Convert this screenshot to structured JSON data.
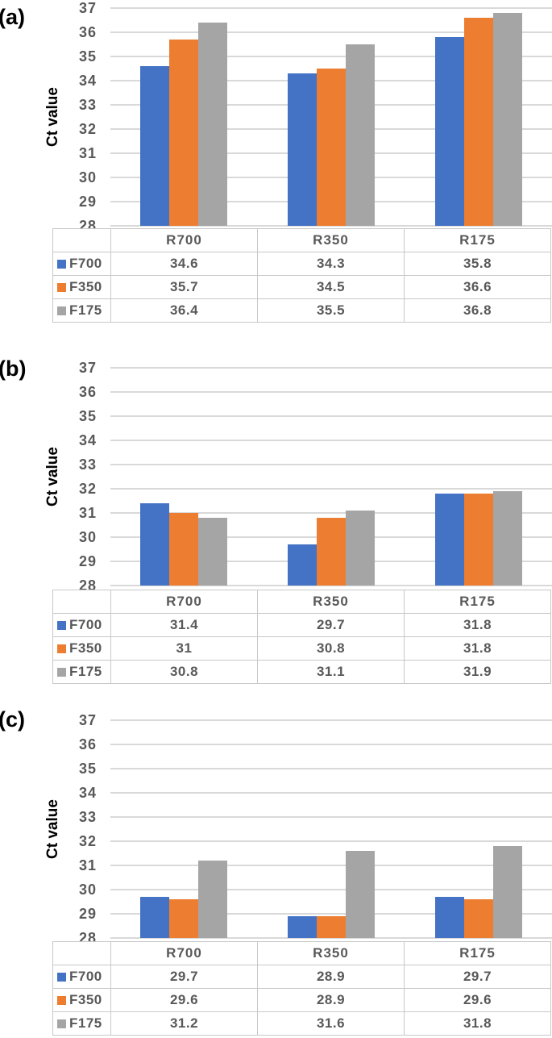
{
  "figure": {
    "ylabel": "Ct value",
    "colors": {
      "series_blue": "#4472C4",
      "series_orange": "#ED7D31",
      "series_gray": "#A5A5A5",
      "gridline": "#D9D9D9",
      "axis_text": "#595959",
      "table_border": "#C8C8C8",
      "panel_label_text": "#000000"
    }
  },
  "chart_data": [
    {
      "type": "bar",
      "panel_label": "(a)",
      "title": "",
      "xlabel": "",
      "ylabel": "Ct value",
      "ylim": [
        28,
        37
      ],
      "yticks": [
        37,
        36,
        35,
        34,
        33,
        32,
        31,
        30,
        29,
        28
      ],
      "grid": true,
      "legend_position": "table-left",
      "categories": [
        "R700",
        "R350",
        "R175"
      ],
      "series": [
        {
          "name": "F700",
          "color": "#4472C4",
          "values": [
            34.6,
            34.3,
            35.8
          ]
        },
        {
          "name": "F350",
          "color": "#ED7D31",
          "values": [
            35.7,
            34.5,
            36.6
          ]
        },
        {
          "name": "F175",
          "color": "#A5A5A5",
          "values": [
            36.4,
            35.5,
            36.8
          ]
        }
      ]
    },
    {
      "type": "bar",
      "panel_label": "(b)",
      "title": "",
      "xlabel": "",
      "ylabel": "Ct value",
      "ylim": [
        28,
        37
      ],
      "yticks": [
        37,
        36,
        35,
        34,
        33,
        32,
        31,
        30,
        29,
        28
      ],
      "grid": true,
      "legend_position": "table-left",
      "categories": [
        "R700",
        "R350",
        "R175"
      ],
      "series": [
        {
          "name": "F700",
          "color": "#4472C4",
          "values": [
            31.4,
            29.7,
            31.8
          ]
        },
        {
          "name": "F350",
          "color": "#ED7D31",
          "values": [
            31,
            30.8,
            31.8
          ]
        },
        {
          "name": "F175",
          "color": "#A5A5A5",
          "values": [
            30.8,
            31.1,
            31.9
          ]
        }
      ]
    },
    {
      "type": "bar",
      "panel_label": "(c)",
      "title": "",
      "xlabel": "",
      "ylabel": "Ct value",
      "ylim": [
        28,
        37
      ],
      "yticks": [
        37,
        36,
        35,
        34,
        33,
        32,
        31,
        30,
        29,
        28
      ],
      "grid": true,
      "legend_position": "table-left",
      "categories": [
        "R700",
        "R350",
        "R175"
      ],
      "series": [
        {
          "name": "F700",
          "color": "#4472C4",
          "values": [
            29.7,
            28.9,
            29.7
          ]
        },
        {
          "name": "F350",
          "color": "#ED7D31",
          "values": [
            29.6,
            28.9,
            29.6
          ]
        },
        {
          "name": "F175",
          "color": "#A5A5A5",
          "values": [
            31.2,
            31.6,
            31.8
          ]
        }
      ]
    }
  ]
}
